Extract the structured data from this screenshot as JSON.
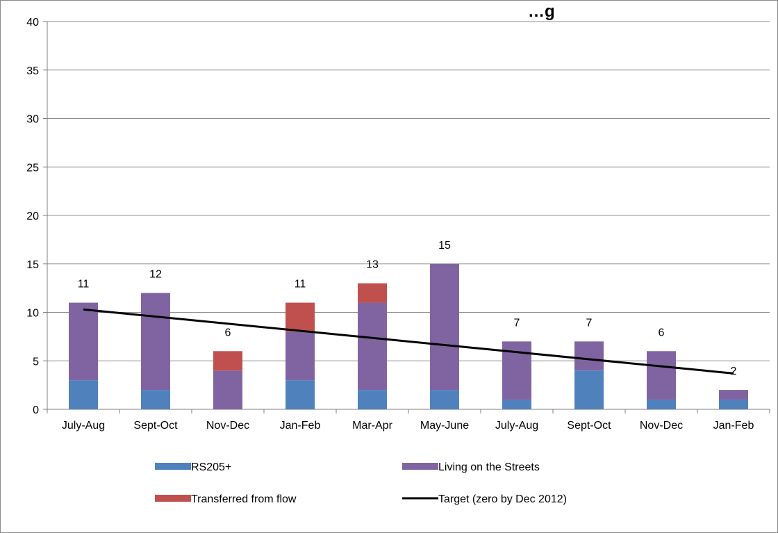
{
  "chart_data": {
    "type": "bar",
    "stacked": true,
    "title": "…g",
    "categories": [
      "July-Aug",
      "Sept-Oct",
      "Nov-Dec",
      "Jan-Feb",
      "Mar-Apr",
      "May-June",
      "July-Aug",
      "Sept-Oct",
      "Nov-Dec",
      "Jan-Feb"
    ],
    "series": [
      {
        "name": "RS205+",
        "color": "#4f81bd",
        "values": [
          3,
          2,
          0,
          3,
          2,
          2,
          1,
          4,
          1,
          1
        ]
      },
      {
        "name": "Living on the Streets",
        "color": "#8064a2",
        "values": [
          8,
          10,
          4,
          5,
          9,
          13,
          6,
          3,
          5,
          1
        ]
      },
      {
        "name": "Transferred from flow",
        "color": "#c0504d",
        "values": [
          0,
          0,
          2,
          3,
          2,
          0,
          0,
          0,
          0,
          0
        ]
      }
    ],
    "totals": [
      11,
      12,
      6,
      11,
      13,
      15,
      7,
      7,
      6,
      2
    ],
    "target": {
      "name": "Target (zero by Dec 2012)",
      "color": "#000000",
      "start": 10.3,
      "end": 3.7
    },
    "ylim": [
      0,
      40
    ],
    "yticks": [
      0,
      5,
      10,
      15,
      20,
      25,
      30,
      35,
      40
    ],
    "grid": true,
    "legend_position": "bottom"
  }
}
